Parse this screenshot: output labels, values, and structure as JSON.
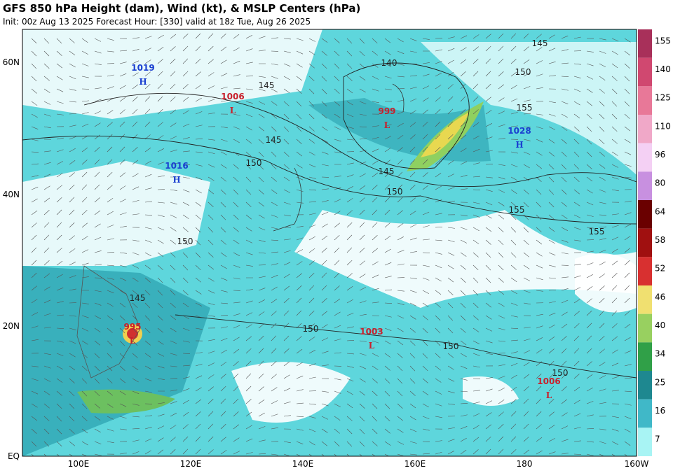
{
  "header": {
    "title": "GFS 850 hPa Height (dam), Wind (kt), & MSLP Centers (hPa)",
    "subtitle": "Init: 00z Aug 13 2025   Forecast Hour: [330]   valid at 18z Tue, Aug 26 2025"
  },
  "axes": {
    "lat_labels": [
      "60N",
      "40N",
      "20N",
      "EQ"
    ],
    "lon_labels": [
      "100E",
      "120E",
      "140E",
      "160E",
      "180",
      "160W"
    ]
  },
  "centers": [
    {
      "value": "1019",
      "letter": "H"
    },
    {
      "value": "1006",
      "letter": "L"
    },
    {
      "value": "999",
      "letter": "L"
    },
    {
      "value": "1028",
      "letter": "H"
    },
    {
      "value": "1016",
      "letter": "H"
    },
    {
      "value": "995",
      "letter": "L"
    },
    {
      "value": "1003",
      "letter": "L"
    },
    {
      "value": "1006",
      "letter": "L"
    }
  ],
  "contour_labels": [
    "145",
    "140",
    "150",
    "145",
    "155",
    "145",
    "150",
    "145",
    "150",
    "155",
    "155",
    "150",
    "145",
    "150",
    "150",
    "150"
  ],
  "colorbar": {
    "ticks": [
      "155",
      "140",
      "125",
      "110",
      "96",
      "80",
      "64",
      "58",
      "52",
      "46",
      "40",
      "34",
      "25",
      "16",
      "7"
    ],
    "colors": [
      "#a8305a",
      "#d04870",
      "#e87898",
      "#f0a8c8",
      "#f4d0f4",
      "#c890e0",
      "#6a0000",
      "#a01010",
      "#d83030",
      "#f0e070",
      "#98d060",
      "#30a048",
      "#1e8890",
      "#40b8c8",
      "#a8f4f4"
    ]
  }
}
